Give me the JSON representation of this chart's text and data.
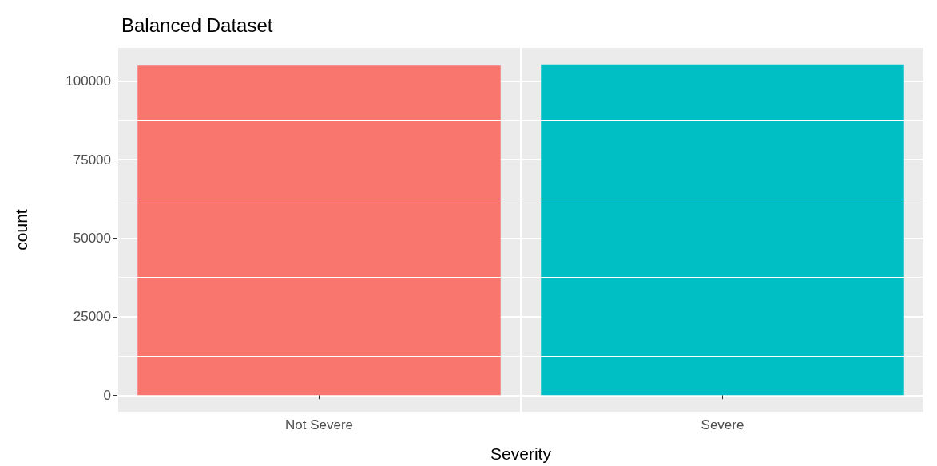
{
  "chart_data": {
    "type": "bar",
    "title": "Balanced Dataset",
    "xlabel": "Severity",
    "ylabel": "count",
    "categories": [
      "Not Severe",
      "Severe"
    ],
    "values": [
      104900,
      105300
    ],
    "colors": [
      "#f8766d",
      "#00bfc4"
    ],
    "ylim": [
      -5265,
      110565
    ],
    "yticks": [
      0,
      25000,
      50000,
      75000,
      100000
    ],
    "grid": true
  }
}
